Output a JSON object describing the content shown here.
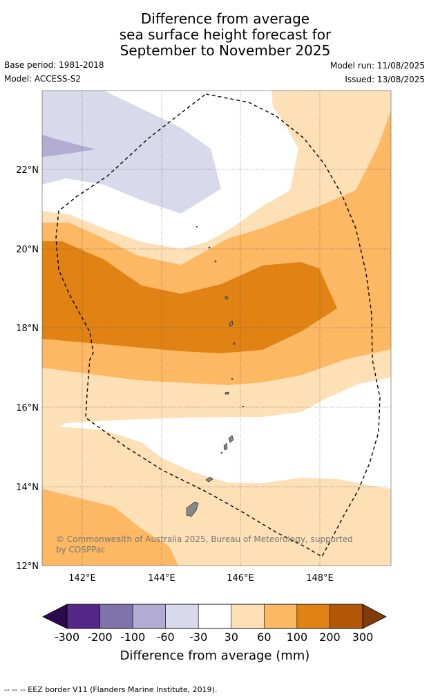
{
  "title": {
    "line1": "Difference from average",
    "line2": "sea surface height forecast for",
    "line3": "September to November 2025"
  },
  "meta": {
    "base_period": "Base period: 1981-2018",
    "model": "Model: ACCESS-S2",
    "model_run": "Model run: 11/08/2025",
    "issued": "Issued: 13/08/2025"
  },
  "map": {
    "latitude_labels": [
      "22°N",
      "20°N",
      "18°N",
      "16°N",
      "14°N",
      "12°N"
    ],
    "longitude_labels": [
      "142°E",
      "144°E",
      "146°E",
      "148°E"
    ],
    "copyright": "© Commonwealth of Australia 2025, Bureau of Meteorology, supported by COSPPac",
    "copyright_line1": "© Commonwealth of Australia 2025, Bureau of Meteorology, supported",
    "copyright_line2": "by COSPPac"
  },
  "colorbar": {
    "label": "Difference from average (mm)",
    "ticks": [
      "-300",
      "-200",
      "-100",
      "-60",
      "-30",
      "30",
      "60",
      "100",
      "200",
      "300"
    ],
    "colors": [
      "#2d0a4e",
      "#542788",
      "#8073ac",
      "#b2abd2",
      "#d8daeb",
      "#ffffff",
      "#fee0b6",
      "#fdb863",
      "#e08214",
      "#b35806",
      "#7f3b08"
    ]
  },
  "footer": "--  --  -- EEZ border V11 (Flanders Marine Institute, 2019)."
}
